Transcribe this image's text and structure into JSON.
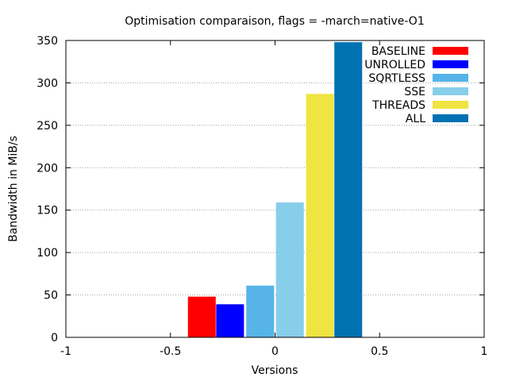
{
  "chart_data": {
    "type": "bar",
    "title": "Optimisation comparaison, flags = -march=native-O1",
    "xlabel": "Versions",
    "ylabel": "Bandwidth in MiB/s",
    "xlim": [
      -1,
      1
    ],
    "ylim": [
      0,
      350
    ],
    "xticks": [
      -1,
      -0.5,
      0,
      0.5,
      1
    ],
    "xtick_labels": [
      "-1",
      "-0.5",
      "0",
      "0.5",
      "1"
    ],
    "yticks": [
      0,
      50,
      100,
      150,
      200,
      250,
      300,
      350
    ],
    "ytick_labels": [
      "0",
      "50",
      "100",
      "150",
      "200",
      "250",
      "300",
      "350"
    ],
    "grid": "horizontal-dotted",
    "legend_position": "top-right",
    "bar_width": 0.133,
    "series": [
      {
        "name": "BASELINE",
        "x": -0.35,
        "value": 48,
        "color": "#ff0000"
      },
      {
        "name": "UNROLLED",
        "x": -0.215,
        "value": 39,
        "color": "#0000ff"
      },
      {
        "name": "SQRTLESS",
        "x": -0.071,
        "value": 61,
        "color": "#56b4e9"
      },
      {
        "name": "SSE",
        "x": 0.071,
        "value": 159,
        "color": "#87ceeb"
      },
      {
        "name": "THREADS",
        "x": 0.215,
        "value": 287,
        "color": "#f0e442"
      },
      {
        "name": "ALL",
        "x": 0.35,
        "value": 348,
        "color": "#0072b2"
      }
    ]
  }
}
